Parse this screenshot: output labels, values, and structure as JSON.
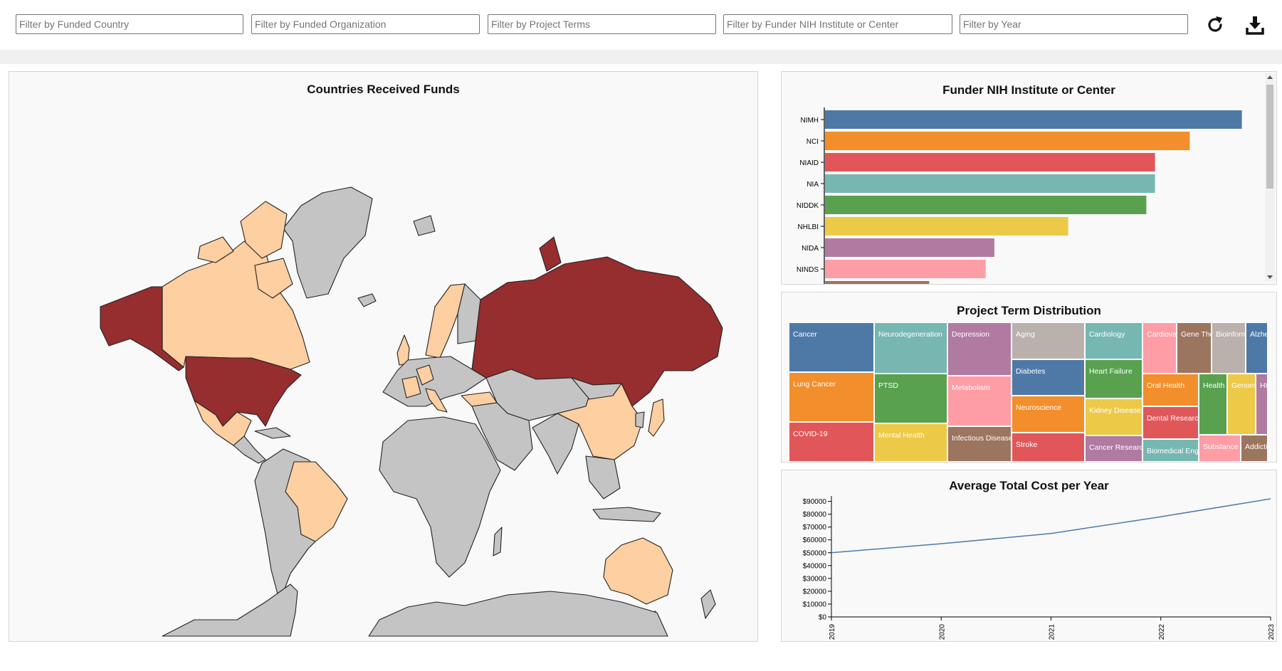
{
  "filters": {
    "country": "Filter by Funded Country",
    "organization": "Filter by Funded Organization",
    "terms": "Filter by Project Terms",
    "institute": "Filter by Funder NIH Institute or Center",
    "year": "Filter by Year"
  },
  "toolbar": {
    "refresh_icon": "refresh-icon",
    "download_icon": "download-icon"
  },
  "map": {
    "title": "Countries Received Funds",
    "colors": {
      "high": "#962d2f",
      "medium": "#f3a48f",
      "low": "#fdcfa1",
      "none": "#c4c4c4"
    }
  },
  "institutes": {
    "title": "Funder NIH Institute or Center",
    "chart_data": {
      "type": "bar",
      "orientation": "horizontal",
      "categories": [
        "NIMH",
        "NCI",
        "NIAID",
        "NIA",
        "NIDDK",
        "NHLBI",
        "NIDA",
        "NINDS",
        ""
      ],
      "values": [
        96,
        84,
        76,
        76,
        74,
        56,
        39,
        37,
        24
      ],
      "colors": [
        "#4e79a7",
        "#f28e2b",
        "#e15759",
        "#76b7b2",
        "#59a14f",
        "#edc948",
        "#b07aa1",
        "#ff9da7",
        "#9c755f"
      ],
      "xlim": [
        0,
        100
      ]
    }
  },
  "terms": {
    "title": "Project Term Distribution",
    "chart_data": {
      "type": "treemap",
      "cells": [
        {
          "label": "Cancer",
          "color": "#4e79a7"
        },
        {
          "label": "Lung Cancer",
          "color": "#f28e2b"
        },
        {
          "label": "COVID-19",
          "color": "#e15759"
        },
        {
          "label": "Neurodegeneration",
          "color": "#76b7b2"
        },
        {
          "label": "PTSD",
          "color": "#59a14f"
        },
        {
          "label": "Mental Health",
          "color": "#edc948"
        },
        {
          "label": "Depression",
          "color": "#b07aa1"
        },
        {
          "label": "Metabolism",
          "color": "#ff9da7"
        },
        {
          "label": "Infectious Diseases",
          "color": "#9c755f"
        },
        {
          "label": "Aging",
          "color": "#bab0ac"
        },
        {
          "label": "Diabetes",
          "color": "#4e79a7"
        },
        {
          "label": "Neuroscience",
          "color": "#f28e2b"
        },
        {
          "label": "Stroke",
          "color": "#e15759"
        },
        {
          "label": "Cardiology",
          "color": "#76b7b2"
        },
        {
          "label": "Heart Failure",
          "color": "#59a14f"
        },
        {
          "label": "Kidney Disease",
          "color": "#edc948"
        },
        {
          "label": "Cancer Research",
          "color": "#b07aa1"
        },
        {
          "label": "Cardiovascular",
          "color": "#ff9da7"
        },
        {
          "label": "Gene Therapy",
          "color": "#9c755f"
        },
        {
          "label": "Bioinformatics",
          "color": "#bab0ac"
        },
        {
          "label": "Alzheimer",
          "color": "#4e79a7"
        },
        {
          "label": "Oral Health",
          "color": "#f28e2b"
        },
        {
          "label": "Dental Research",
          "color": "#e15759"
        },
        {
          "label": "Biomedical Engineering",
          "color": "#76b7b2"
        },
        {
          "label": "Health Disparities",
          "color": "#59a14f"
        },
        {
          "label": "Genomics",
          "color": "#edc948"
        },
        {
          "label": "HIV",
          "color": "#b07aa1"
        },
        {
          "label": "Substance Abuse",
          "color": "#ff9da7"
        },
        {
          "label": "Addiction",
          "color": "#9c755f"
        }
      ]
    }
  },
  "cost": {
    "title": "Average Total Cost per Year",
    "chart_data": {
      "type": "line",
      "x": [
        "2019",
        "2020",
        "2021",
        "2022",
        "2023"
      ],
      "y": [
        50000,
        57000,
        65000,
        78000,
        92000
      ],
      "ylim": [
        0,
        92000
      ],
      "yticks": [
        "$0",
        "$10000",
        "$20000",
        "$30000",
        "$40000",
        "$50000",
        "$60000",
        "$70000",
        "$80000",
        "$90000"
      ],
      "color": "#4e79a7"
    }
  }
}
